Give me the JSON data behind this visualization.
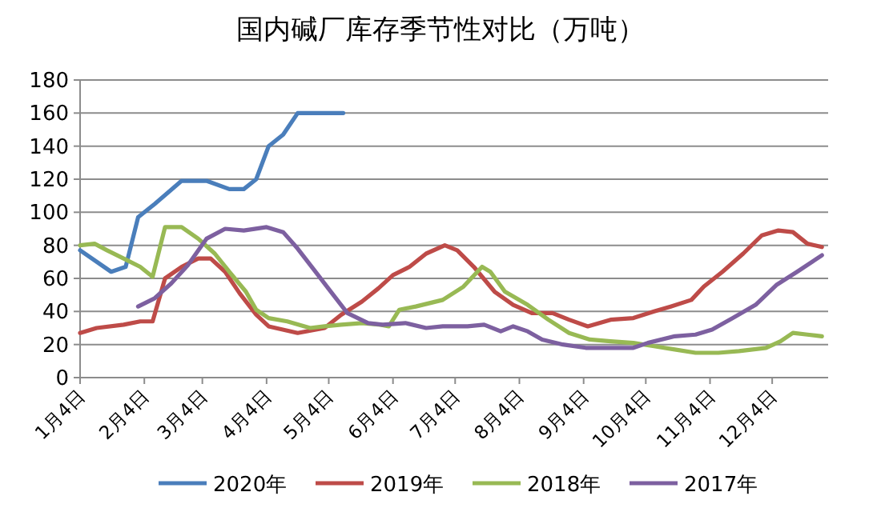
{
  "chart_data": {
    "type": "line",
    "title": "国内碱厂库存季节性对比（万吨）",
    "xlim": [
      "--01-04",
      "--12-31"
    ],
    "xticks": [
      {
        "value": "--01-04",
        "label": "1月4日"
      },
      {
        "value": "--02-04",
        "label": "2月4日"
      },
      {
        "value": "--03-04",
        "label": "3月4日"
      },
      {
        "value": "--04-04",
        "label": "4月4日"
      },
      {
        "value": "--05-04",
        "label": "5月4日"
      },
      {
        "value": "--06-04",
        "label": "6月4日"
      },
      {
        "value": "--07-04",
        "label": "7月4日"
      },
      {
        "value": "--08-04",
        "label": "8月4日"
      },
      {
        "value": "--09-04",
        "label": "9月4日"
      },
      {
        "value": "--10-04",
        "label": "10月4日"
      },
      {
        "value": "--11-04",
        "label": "11月4日"
      },
      {
        "value": "--12-04",
        "label": "12月4日"
      }
    ],
    "ylim": [
      0,
      180
    ],
    "yticks": [
      0,
      20,
      40,
      60,
      80,
      100,
      120,
      140,
      160,
      180
    ],
    "grid": "y",
    "legend": "bottom",
    "series": [
      {
        "name": "2020年",
        "color": "#4a7ebb",
        "x": [
          "--01-04",
          "--01-19",
          "--01-26",
          "--02-01",
          "--02-09",
          "--02-22",
          "--03-06",
          "--03-17",
          "--03-24",
          "--03-30",
          "--04-05",
          "--04-12",
          "--04-19",
          "--05-11"
        ],
        "values": [
          77,
          64,
          67,
          97,
          105,
          119,
          119,
          114,
          114,
          120,
          140,
          147,
          160,
          160
        ]
      },
      {
        "name": "2019年",
        "color": "#be4b48",
        "x": [
          "--01-04",
          "--01-12",
          "--01-25",
          "--02-02",
          "--02-08",
          "--02-14",
          "--02-22",
          "--03-02",
          "--03-08",
          "--03-15",
          "--03-22",
          "--03-30",
          "--04-05",
          "--04-19",
          "--05-02",
          "--05-10",
          "--05-20",
          "--05-28",
          "--06-04",
          "--06-12",
          "--06-20",
          "--06-29",
          "--07-05",
          "--07-13",
          "--07-23",
          "--08-01",
          "--08-10",
          "--08-20",
          "--08-28",
          "--09-06",
          "--09-17",
          "--09-28",
          "--10-08",
          "--10-16",
          "--10-26",
          "--11-01",
          "--11-10",
          "--11-20",
          "--11-29",
          "--12-07",
          "--12-14",
          "--12-21",
          "--12-28"
        ],
        "values": [
          27,
          30,
          32,
          34,
          34,
          60,
          67,
          72,
          72,
          64,
          51,
          38,
          31,
          27,
          30,
          38,
          46,
          54,
          62,
          67,
          75,
          80,
          77,
          67,
          52,
          44,
          39,
          39,
          35,
          31,
          35,
          36,
          40,
          43,
          47,
          55,
          64,
          75,
          86,
          89,
          88,
          81,
          79
        ]
      },
      {
        "name": "2018年",
        "color": "#98b954",
        "x": [
          "--01-04",
          "--01-11",
          "--01-17",
          "--01-25",
          "--02-02",
          "--02-08",
          "--02-14",
          "--02-22",
          "--03-02",
          "--03-10",
          "--03-17",
          "--03-25",
          "--03-30",
          "--04-05",
          "--04-14",
          "--04-25",
          "--05-02",
          "--05-10",
          "--05-20",
          "--05-29",
          "--06-02",
          "--06-07",
          "--06-15",
          "--06-28",
          "--07-08",
          "--07-17",
          "--07-21",
          "--07-28",
          "--08-08",
          "--08-18",
          "--08-28",
          "--09-07",
          "--09-17",
          "--09-28",
          "--10-08",
          "--10-18",
          "--10-28",
          "--11-08",
          "--11-18",
          "--12-01",
          "--12-08",
          "--12-14",
          "--12-21",
          "--12-28"
        ],
        "values": [
          80,
          81,
          77,
          72,
          67,
          61,
          91,
          91,
          84,
          75,
          64,
          52,
          41,
          36,
          34,
          30,
          31,
          32,
          33,
          32,
          31,
          41,
          43,
          47,
          55,
          67,
          64,
          52,
          44,
          35,
          27,
          23,
          22,
          21,
          19,
          17,
          15,
          15,
          16,
          18,
          22,
          27,
          26,
          25
        ]
      },
      {
        "name": "2017年",
        "color": "#7d60a0",
        "x": [
          "--02-01",
          "--02-09",
          "--02-17",
          "--02-25",
          "--03-06",
          "--03-15",
          "--03-24",
          "--04-04",
          "--04-12",
          "--04-19",
          "--04-27",
          "--05-05",
          "--05-13",
          "--05-23",
          "--05-30",
          "--06-10",
          "--06-20",
          "--06-28",
          "--07-10",
          "--07-18",
          "--07-26",
          "--08-01",
          "--08-08",
          "--08-15",
          "--08-25",
          "--09-05",
          "--09-15",
          "--09-28",
          "--10-05",
          "--10-18",
          "--10-28",
          "--11-05",
          "--11-15",
          "--11-26",
          "--12-06",
          "--12-16",
          "--12-28"
        ],
        "values": [
          43,
          48,
          57,
          68,
          84,
          90,
          89,
          91,
          88,
          78,
          65,
          52,
          39,
          33,
          32,
          33,
          30,
          31,
          31,
          32,
          28,
          31,
          28,
          23,
          20,
          18,
          18,
          18,
          21,
          25,
          26,
          29,
          36,
          44,
          56,
          64,
          74
        ]
      }
    ]
  }
}
